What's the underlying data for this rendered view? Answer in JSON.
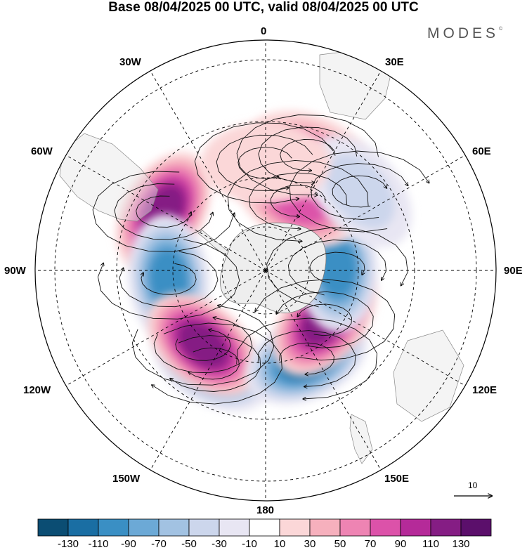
{
  "title": "Base 08/04/2025 00 UTC, valid 08/04/2025 00 UTC",
  "logo": "MODES",
  "logo_mark": "©",
  "lon_labels": {
    "lon_0": "0",
    "lon_30e": "30E",
    "lon_60e": "60E",
    "lon_90e": "90E",
    "lon_120e": "120E",
    "lon_150e": "150E",
    "lon_180": "180",
    "lon_150w": "150W",
    "lon_120w": "120W",
    "lon_90w": "90W",
    "lon_60w": "60W",
    "lon_30w": "30W"
  },
  "reference_vector": "10",
  "colorbar": {
    "colors": [
      "#0b4d73",
      "#1a6ea3",
      "#3a8fc4",
      "#6ca9d6",
      "#a2c2e2",
      "#ccd6ec",
      "#e8e6f3",
      "#ffffff",
      "#fbd7d8",
      "#f6b0bd",
      "#ee84b3",
      "#dc52a9",
      "#b52a99",
      "#851d84",
      "#5b0f6b"
    ],
    "tick_labels": [
      "-130",
      "-110",
      "-90",
      "-70",
      "-50",
      "-30",
      "-10",
      "10",
      "30",
      "50",
      "70",
      "90",
      "110",
      "130"
    ]
  },
  "anomaly_centers": [
    {
      "lon": -150,
      "lat": -48,
      "value": -110
    },
    {
      "lon": -60,
      "lat": -44,
      "value": 120
    },
    {
      "lon": -95,
      "lat": -52,
      "value": -115
    },
    {
      "lon": -140,
      "lat": -52,
      "value": 120
    },
    {
      "lon": 155,
      "lat": -52,
      "value": -125
    },
    {
      "lon": 130,
      "lat": -60,
      "value": 120
    },
    {
      "lon": 88,
      "lat": -62,
      "value": -115
    },
    {
      "lon": 25,
      "lat": -60,
      "value": 80
    },
    {
      "lon": 20,
      "lat": -42,
      "value": 60
    },
    {
      "lon": 50,
      "lat": -42,
      "value": -50
    },
    {
      "lon": 0,
      "lat": -48,
      "value": 35
    }
  ]
}
